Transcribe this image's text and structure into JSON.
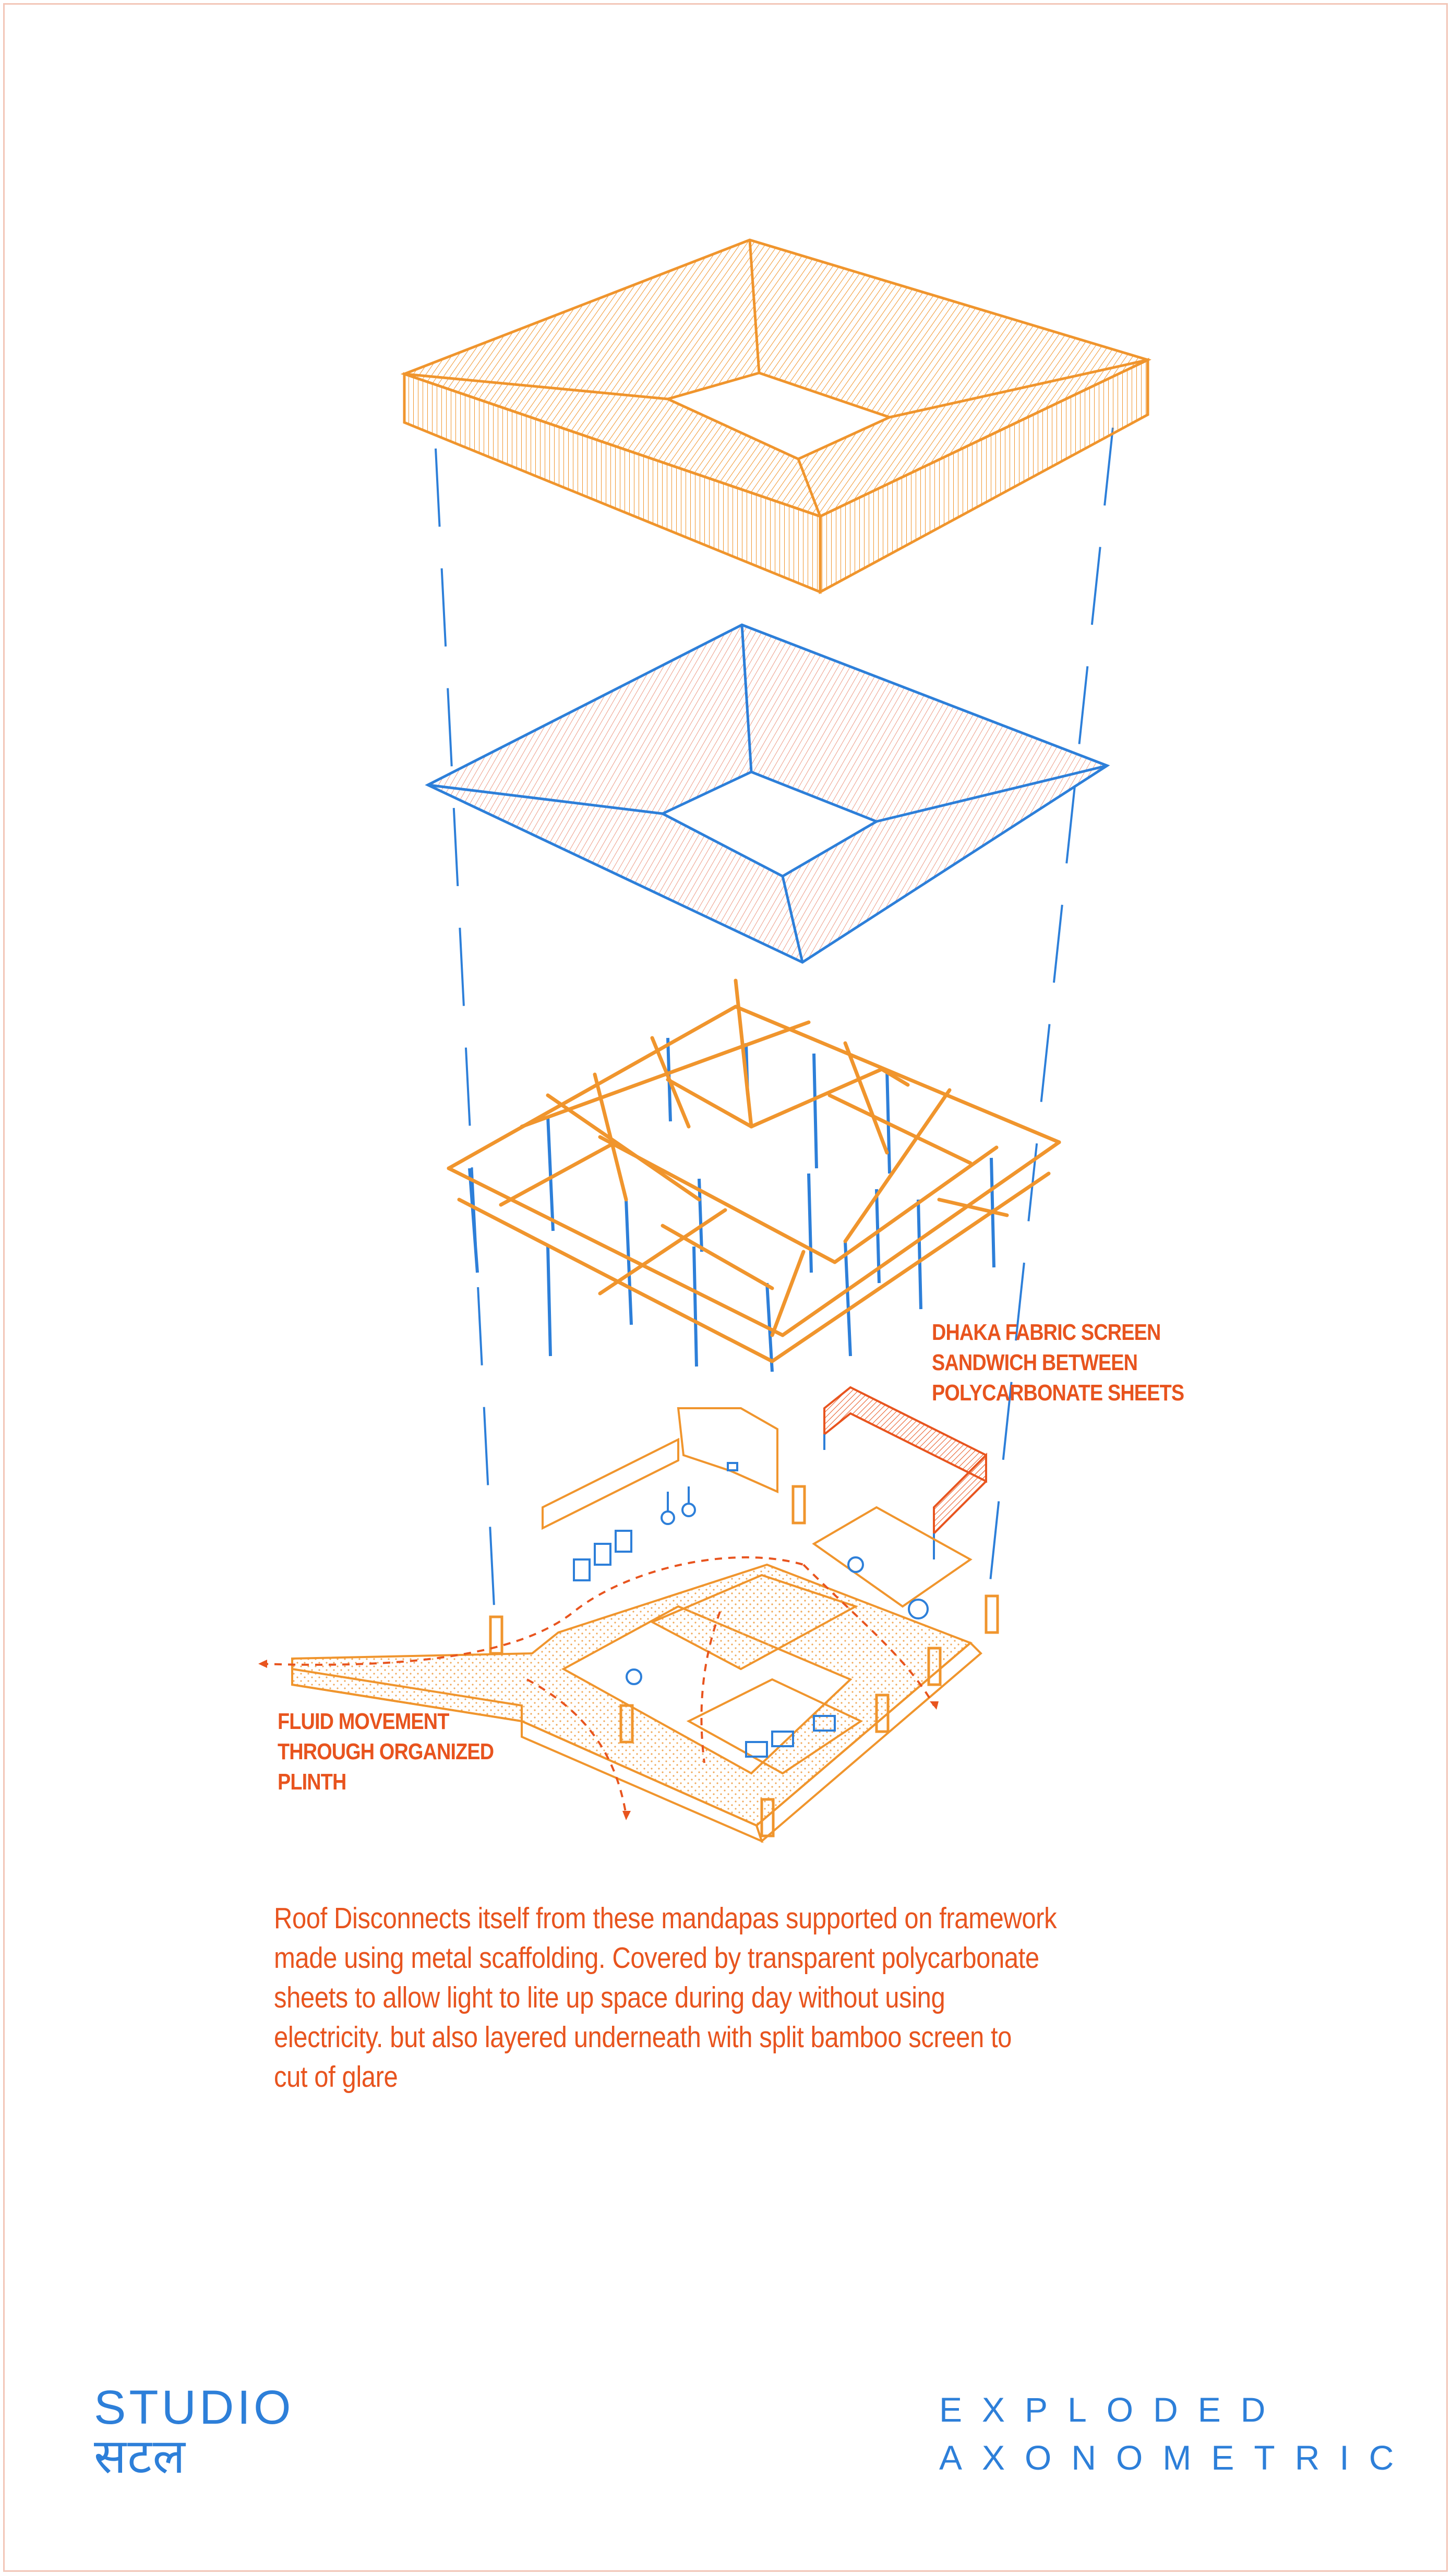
{
  "annotations": {
    "dhaka_screen": [
      "DHAKA FABRIC SCREEN",
      "SANDWICH BETWEEN",
      "POLYCARBONATE SHEETS"
    ],
    "fluid_movement": [
      "FLUID MOVEMENT",
      "THROUGH ORGANIZED",
      "PLINTH"
    ]
  },
  "description": [
    "Roof Disconnects itself from these mandapas supported on framework",
    "made using metal scaffolding. Covered by transparent polycarbonate",
    "sheets to allow light to lite up space during day without using",
    "electricity. but also layered underneath with split bamboo screen to",
    "cut of glare"
  ],
  "logo": {
    "latin": "STUDIO",
    "devanagari": "सटल"
  },
  "title": [
    "EXPLODED",
    "AXONOMETRIC"
  ],
  "colors": {
    "orange": "#f0952d",
    "red_orange": "#e8541e",
    "blue": "#2d7fd9",
    "frame": "#f2c6b8"
  }
}
